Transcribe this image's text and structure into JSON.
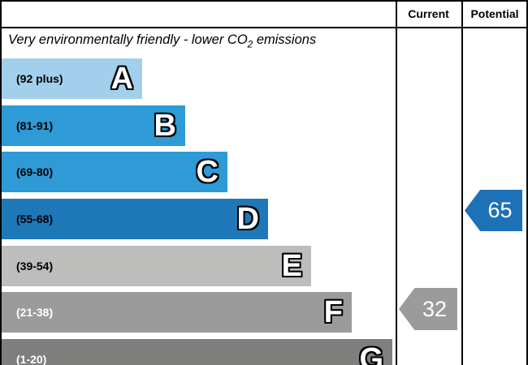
{
  "header": {
    "current": "Current",
    "potential": "Potential"
  },
  "title": {
    "prefix": "Very environmentally friendly - lower CO",
    "sub": "2",
    "suffix": " emissions"
  },
  "bars": [
    {
      "range": "(92 plus)",
      "letter": "A",
      "color": "#a2d0ec",
      "text_color": "#000000"
    },
    {
      "range": "(81-91)",
      "letter": "B",
      "color": "#2e9ad6",
      "text_color": "#000000"
    },
    {
      "range": "(69-80)",
      "letter": "C",
      "color": "#2e9ad6",
      "text_color": "#000000"
    },
    {
      "range": "(55-68)",
      "letter": "D",
      "color": "#1e78b8",
      "text_color": "#000000"
    },
    {
      "range": "(39-54)",
      "letter": "E",
      "color": "#bdbdbc",
      "text_color": "#000000"
    },
    {
      "range": "(21-38)",
      "letter": "F",
      "color": "#9b9b9c",
      "text_color": "#ffffff"
    },
    {
      "range": "(1-20)",
      "letter": "G",
      "color": "#7f7f7e",
      "text_color": "#ffffff"
    }
  ],
  "markers": {
    "current": {
      "value": "32",
      "color": "#9b9b9c"
    },
    "potential": {
      "value": "65",
      "color": "#1d71b7"
    }
  },
  "chart_data": {
    "type": "bar",
    "title": "Very environmentally friendly - lower CO2 emissions",
    "columns": [
      "Current",
      "Potential"
    ],
    "bands": [
      {
        "letter": "A",
        "range": "92 plus",
        "color": "#a2d0ec",
        "relative_width": 0.36
      },
      {
        "letter": "B",
        "range": "81-91",
        "color": "#2e9ad6",
        "relative_width": 0.47
      },
      {
        "letter": "C",
        "range": "69-80",
        "color": "#2e9ad6",
        "relative_width": 0.57
      },
      {
        "letter": "D",
        "range": "55-68",
        "color": "#1e78b8",
        "relative_width": 0.68
      },
      {
        "letter": "E",
        "range": "39-54",
        "color": "#bdbdbc",
        "relative_width": 0.79
      },
      {
        "letter": "F",
        "range": "21-38",
        "color": "#9b9b9c",
        "relative_width": 0.89
      },
      {
        "letter": "G",
        "range": "1-20",
        "color": "#7f7f7e",
        "relative_width": 0.99
      }
    ],
    "current": {
      "value": 32,
      "band": "F",
      "marker_color": "#9b9b9c"
    },
    "potential": {
      "value": 65,
      "band": "D",
      "marker_color": "#1d71b7"
    },
    "legend_position": "none",
    "grid": false
  }
}
